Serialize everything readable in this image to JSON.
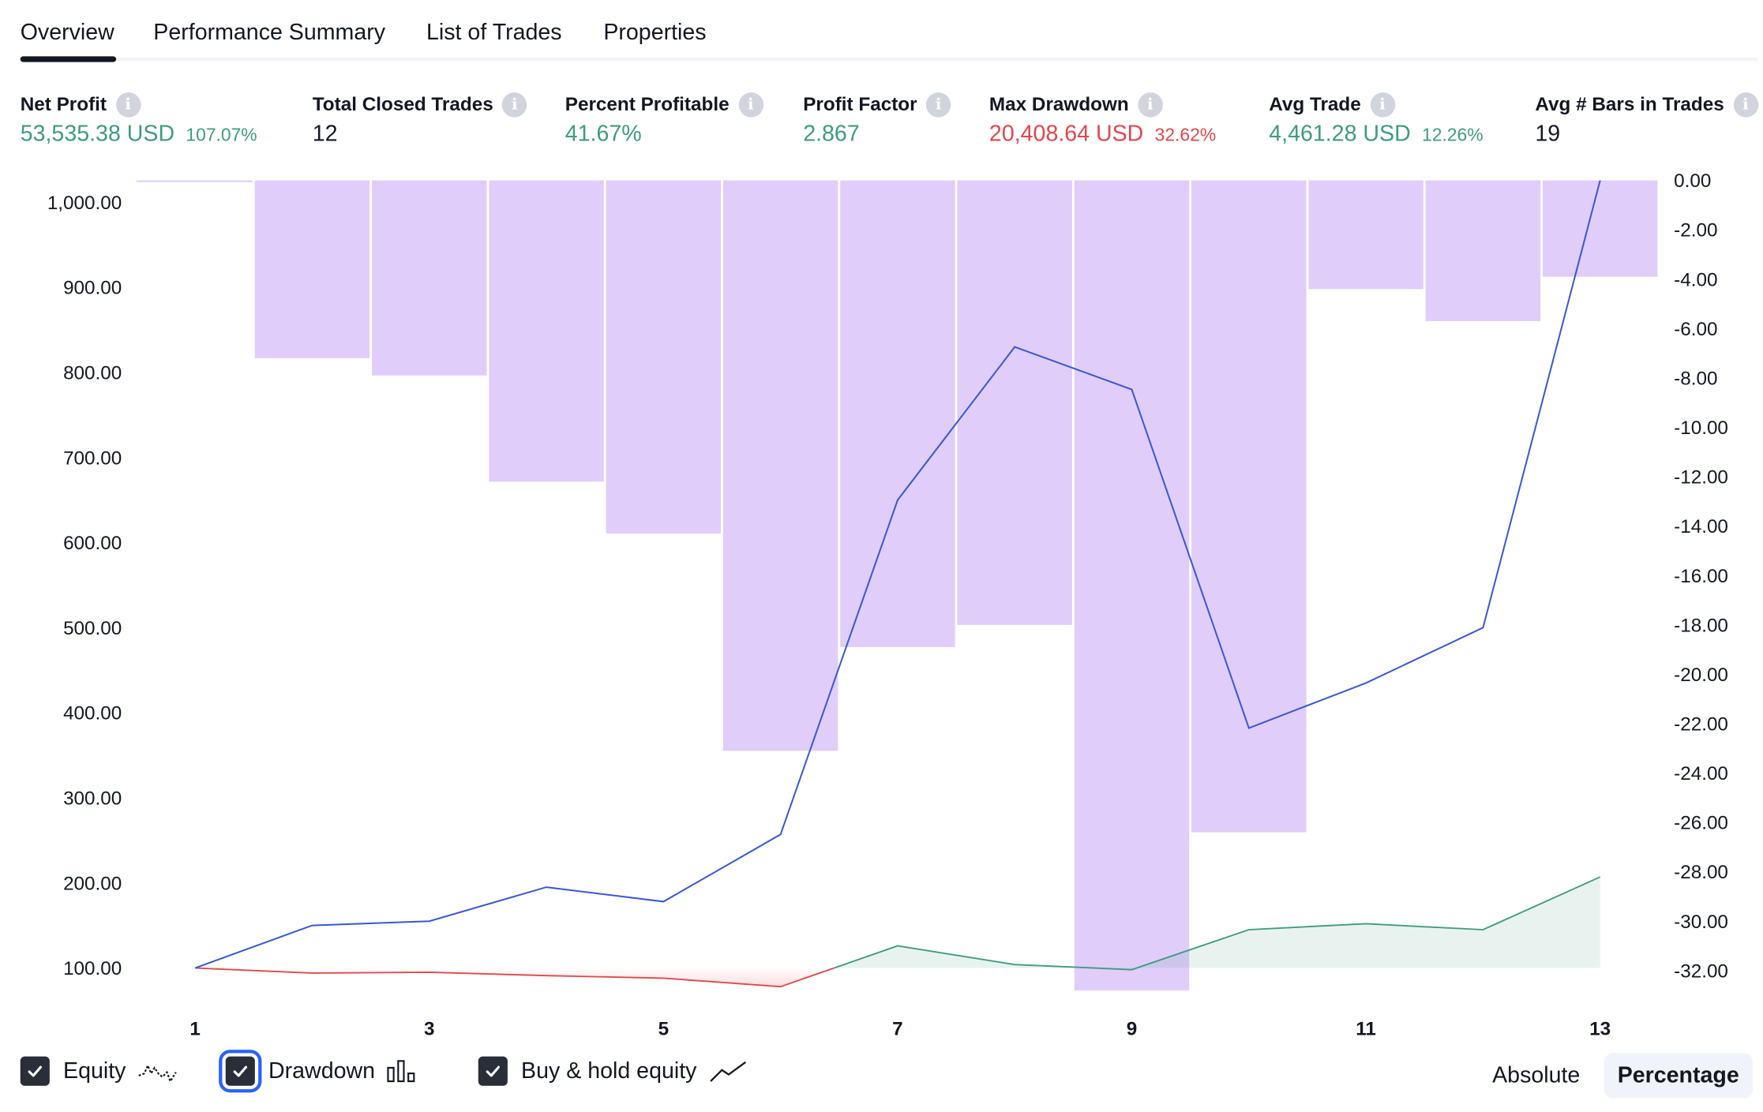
{
  "tabs": [
    {
      "label": "Overview",
      "active": true
    },
    {
      "label": "Performance Summary",
      "active": false
    },
    {
      "label": "List of Trades",
      "active": false
    },
    {
      "label": "Properties",
      "active": false
    }
  ],
  "stats": {
    "net_profit": {
      "label": "Net Profit",
      "value": "53,535.38 USD",
      "pct": "107.07%"
    },
    "total_closed_trades": {
      "label": "Total Closed Trades",
      "value": "12"
    },
    "percent_profitable": {
      "label": "Percent Profitable",
      "value": "41.67%"
    },
    "profit_factor": {
      "label": "Profit Factor",
      "value": "2.867"
    },
    "max_drawdown": {
      "label": "Max Drawdown",
      "value": "20,408.64 USD",
      "pct": "32.62%"
    },
    "avg_trade": {
      "label": "Avg Trade",
      "value": "4,461.28 USD",
      "pct": "12.26%"
    },
    "avg_bars": {
      "label": "Avg # Bars in Trades",
      "value": "19"
    }
  },
  "info_glyph": "i",
  "legend": {
    "equity": {
      "label": "Equity",
      "checked": true
    },
    "drawdown": {
      "label": "Drawdown",
      "checked": true
    },
    "buy_hold": {
      "label": "Buy & hold equity",
      "checked": true
    }
  },
  "modes": {
    "absolute": "Absolute",
    "percentage": "Percentage",
    "selected": "Percentage"
  },
  "colors": {
    "equity_line": "#3857d6",
    "drawdown_bar": "#e0cdfa",
    "buy_hold_positive": "#3e9b7f",
    "buy_hold_negative": "#e0474c",
    "positive_text": "#3e9b7f",
    "negative_text": "#e0474c"
  },
  "chart_data": {
    "type": "bar+line",
    "x": [
      1,
      2,
      3,
      4,
      5,
      6,
      7,
      8,
      9,
      10,
      11,
      12,
      13
    ],
    "x_tick_labels": [
      "1",
      "3",
      "5",
      "7",
      "9",
      "11",
      "13"
    ],
    "x_ticks": [
      1,
      3,
      5,
      7,
      9,
      11,
      13
    ],
    "left_axis": {
      "ticks": [
        "100.00",
        "200.00",
        "300.00",
        "400.00",
        "500.00",
        "600.00",
        "700.00",
        "800.00",
        "900.00",
        "1,000.00"
      ],
      "range": [
        100,
        1000
      ]
    },
    "right_axis": {
      "ticks": [
        "0.00",
        "-2.00",
        "-4.00",
        "-6.00",
        "-8.00",
        "-10.00",
        "-12.00",
        "-14.00",
        "-16.00",
        "-18.00",
        "-20.00",
        "-22.00",
        "-24.00",
        "-26.00",
        "-28.00",
        "-30.00",
        "-32.00"
      ],
      "range": [
        -32,
        0
      ]
    },
    "series": [
      {
        "name": "Drawdown",
        "type": "bar",
        "axis": "right",
        "values": [
          0,
          -7.2,
          -7.9,
          -12.2,
          -14.3,
          -23.1,
          -18.9,
          -18.0,
          -32.8,
          -26.4,
          -4.4,
          -5.7,
          -3.9
        ]
      },
      {
        "name": "Equity",
        "type": "line",
        "axis": "left",
        "values": [
          100,
          150,
          155,
          195,
          178,
          257,
          650,
          830,
          780,
          382,
          435,
          500,
          1030
        ]
      },
      {
        "name": "Buy & hold equity",
        "type": "area",
        "axis": "left",
        "values": [
          100,
          94,
          95,
          91,
          88,
          78,
          126,
          104,
          98,
          145,
          152,
          145,
          207
        ]
      }
    ]
  }
}
